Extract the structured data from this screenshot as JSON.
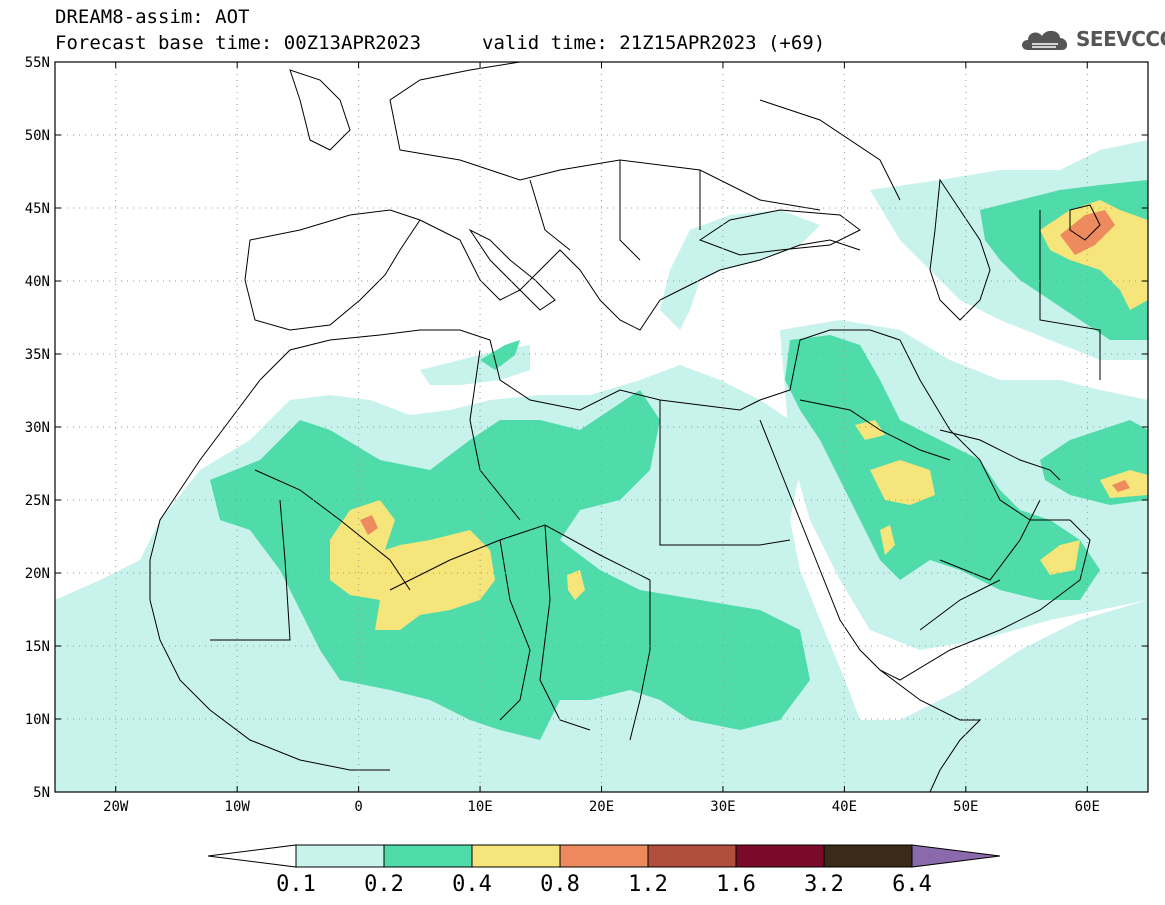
{
  "header": {
    "title": "DREAM8-assim: AOT",
    "base_time": "Forecast base time: 00Z13APR2023",
    "valid_time": "valid time: 21Z15APR2023 (+69)"
  },
  "logo": {
    "text": "SEEVCCC",
    "icon": "cloud-logo-icon"
  },
  "map": {
    "lon_range": [
      -25,
      65
    ],
    "lat_range": [
      5,
      55
    ],
    "lat_ticks": [
      {
        "value": 55,
        "label": "55N"
      },
      {
        "value": 50,
        "label": "50N"
      },
      {
        "value": 45,
        "label": "45N"
      },
      {
        "value": 40,
        "label": "40N"
      },
      {
        "value": 35,
        "label": "35N"
      },
      {
        "value": 30,
        "label": "30N"
      },
      {
        "value": 25,
        "label": "25N"
      },
      {
        "value": 20,
        "label": "20N"
      },
      {
        "value": 15,
        "label": "15N"
      },
      {
        "value": 10,
        "label": "10N"
      },
      {
        "value": 5,
        "label": "5N"
      }
    ],
    "lon_ticks": [
      {
        "value": -20,
        "label": "20W"
      },
      {
        "value": -10,
        "label": "10W"
      },
      {
        "value": 0,
        "label": "0"
      },
      {
        "value": 10,
        "label": "10E"
      },
      {
        "value": 20,
        "label": "20E"
      },
      {
        "value": 30,
        "label": "30E"
      },
      {
        "value": 40,
        "label": "40E"
      },
      {
        "value": 50,
        "label": "50E"
      },
      {
        "value": 60,
        "label": "60E"
      }
    ],
    "grid": "dotted"
  },
  "colorbar": {
    "labels": [
      "0.1",
      "0.2",
      "0.4",
      "0.8",
      "1.2",
      "1.6",
      "3.2",
      "6.4"
    ],
    "colors": [
      "#c8f2ec",
      "#4fdbaa",
      "#f5e57a",
      "#ed8a5e",
      "#b0503c",
      "#7a0a2a",
      "#3a2a18",
      "#8a6aaa"
    ]
  },
  "levels": {
    "l1": "#c8f2ec",
    "l2": "#4fdbaa",
    "l3": "#f5e57a",
    "l4": "#ed8a5e",
    "l5": "#b0503c"
  }
}
